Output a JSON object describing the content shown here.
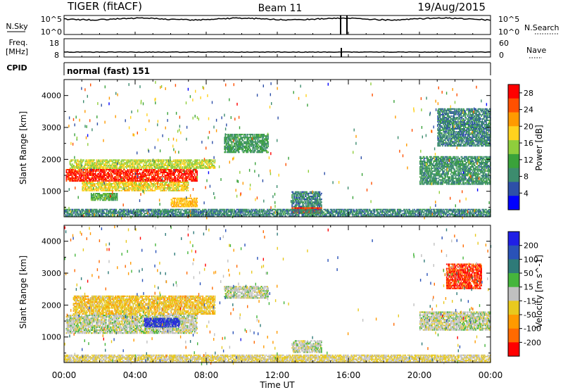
{
  "header": {
    "station": "TIGER (fitACF)",
    "beam": "Beam 11",
    "date": "19/Aug/2015"
  },
  "panels": {
    "nsky": {
      "left_label": "N.Sky",
      "right_label": "N.Search",
      "left_ticks": [
        "10^5",
        "10^0"
      ],
      "right_ticks": [
        "10^5",
        "10^0"
      ]
    },
    "freq": {
      "left_label_1": "Freq.",
      "left_label_2": "[MHz]",
      "right_label": "Nave",
      "left_ticks": [
        "18",
        "8"
      ],
      "right_ticks": [
        "60",
        "0"
      ]
    },
    "cpid": {
      "label": "CPID",
      "text": "normal (fast) 151"
    }
  },
  "colors": {
    "power": [
      "#0000ff",
      "#2d4fa8",
      "#3c8c6e",
      "#3aa23a",
      "#8fce3c",
      "#ffd21e",
      "#ff9a00",
      "#ff5000",
      "#ff0000"
    ],
    "velocity": [
      "#1f1fe6",
      "#2a52b8",
      "#2e7a78",
      "#45b53c",
      "#c0c0c0",
      "#e8c91e",
      "#ff9a00",
      "#ff6a00",
      "#ff0000"
    ]
  },
  "chart_data": [
    {
      "type": "heatmap",
      "title": "",
      "ylabel": "Slant Range [km]",
      "xlabel": "",
      "xlim": [
        "00:00",
        "24:00"
      ],
      "ylim": [
        200,
        4500
      ],
      "x_ticks": [
        "00:00",
        "04:00",
        "08:00",
        "12:00",
        "16:00",
        "20:00",
        "00:00"
      ],
      "y_ticks": [
        1000,
        2000,
        3000,
        4000
      ],
      "colorbar": {
        "label": "Power [dB]",
        "ticks": [
          4,
          8,
          12,
          16,
          20,
          24,
          28
        ],
        "range": [
          0,
          30
        ]
      },
      "regions": [
        {
          "t": [
            0.1,
            7.5
          ],
          "range": [
            1300,
            1700
          ],
          "value": 27
        },
        {
          "t": [
            0.3,
            8.5
          ],
          "range": [
            1700,
            2000
          ],
          "value": 16
        },
        {
          "t": [
            1.0,
            7.0
          ],
          "range": [
            1000,
            1300
          ],
          "value": 18
        },
        {
          "t": [
            1.5,
            3.0
          ],
          "range": [
            700,
            950
          ],
          "value": 12
        },
        {
          "t": [
            6.0,
            7.5
          ],
          "range": [
            500,
            800
          ],
          "value": 20
        },
        {
          "t": [
            9.0,
            11.5
          ],
          "range": [
            2200,
            2800
          ],
          "value": 10
        },
        {
          "t": [
            12.8,
            14.5
          ],
          "range": [
            300,
            500
          ],
          "value": 26
        },
        {
          "t": [
            12.8,
            14.5
          ],
          "range": [
            500,
            1000
          ],
          "value": 8
        },
        {
          "t": [
            20.0,
            24.0
          ],
          "range": [
            1200,
            2100
          ],
          "value": 9
        },
        {
          "t": [
            21.0,
            24.0
          ],
          "range": [
            2400,
            3600
          ],
          "value": 8
        },
        {
          "t": [
            0.0,
            24.0
          ],
          "range": [
            200,
            450
          ],
          "value": 8
        }
      ]
    },
    {
      "type": "heatmap",
      "title": "",
      "ylabel": "Slant Range [km]",
      "xlabel": "Time UT",
      "xlim": [
        "00:00",
        "24:00"
      ],
      "ylim": [
        200,
        4500
      ],
      "x_ticks": [
        "00:00",
        "04:00",
        "08:00",
        "12:00",
        "16:00",
        "20:00",
        "00:00"
      ],
      "y_ticks": [
        1000,
        2000,
        3000,
        4000
      ],
      "colorbar": {
        "label": "Velocity [m s^-1]",
        "ticks": [
          200,
          100,
          50,
          15,
          -15,
          -50,
          -100,
          -200
        ],
        "range": [
          -250,
          250
        ]
      },
      "regions": [
        {
          "t": [
            0.1,
            7.5
          ],
          "range": [
            1100,
            1700
          ],
          "value": 0
        },
        {
          "t": [
            4.5,
            6.5
          ],
          "range": [
            1300,
            1600
          ],
          "value": 200
        },
        {
          "t": [
            0.5,
            8.5
          ],
          "range": [
            1700,
            2300
          ],
          "value": -60
        },
        {
          "t": [
            9.0,
            11.5
          ],
          "range": [
            2200,
            2600
          ],
          "value": 0
        },
        {
          "t": [
            12.8,
            14.5
          ],
          "range": [
            500,
            900
          ],
          "value": 0
        },
        {
          "t": [
            20.0,
            24.0
          ],
          "range": [
            1200,
            1800
          ],
          "value": 0
        },
        {
          "t": [
            21.5,
            23.5
          ],
          "range": [
            2500,
            3300
          ],
          "value": -200
        },
        {
          "t": [
            0.0,
            24.0
          ],
          "range": [
            200,
            450
          ],
          "value": -30
        }
      ]
    }
  ]
}
